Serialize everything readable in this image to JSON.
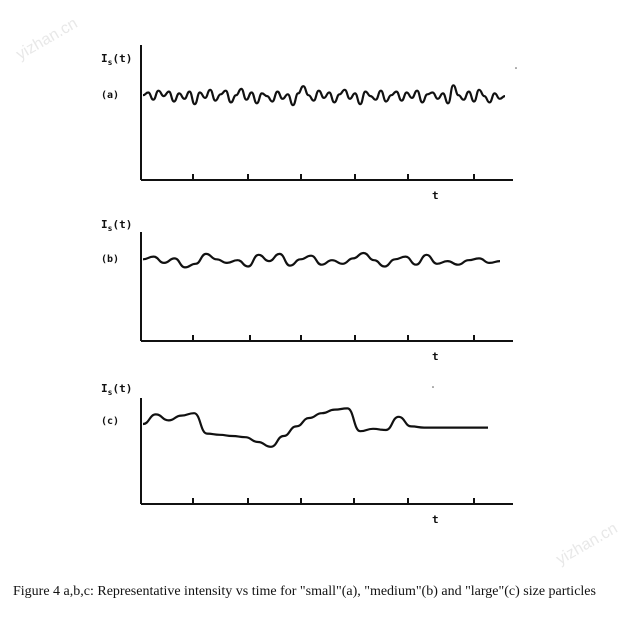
{
  "caption": "Figure 4 a,b,c: Representative intensity vs time for \"small\"(a), \"medium\"(b) and \"large\"(c) size particles",
  "watermarks": [
    "yizhan.cn",
    "yizhan.cn"
  ],
  "chart_data": [
    {
      "type": "line",
      "panel_label": "(a)",
      "ylabel_main": "I",
      "ylabel_sub": "s",
      "ylabel_suffix": "(t)",
      "xlabel": "t",
      "description_note": "",
      "x": [
        0,
        0.1,
        0.2,
        0.3,
        0.4,
        0.5,
        0.6,
        0.7,
        0.8,
        0.9,
        1,
        1.1,
        1.2,
        1.3,
        1.4,
        1.5,
        1.6,
        1.7,
        1.8,
        1.9,
        2,
        2.1,
        2.2,
        2.3,
        2.4,
        2.5,
        2.6,
        2.7,
        2.8,
        2.9,
        3,
        3.1,
        3.2,
        3.3,
        3.4,
        3.5,
        3.6,
        3.7,
        3.8,
        3.9,
        4,
        4.1,
        4.2,
        4.3,
        4.4,
        4.5,
        4.6,
        4.7,
        4.8,
        4.9,
        5,
        5.1,
        5.2,
        5.3,
        5.4,
        5.5,
        5.6,
        5.7,
        5.8,
        5.9,
        6,
        6.1,
        6.2,
        6.3,
        6.4,
        6.5,
        6.6,
        6.7,
        6.8,
        6.9,
        7
      ],
      "y": [
        0.2,
        0.5,
        -0.3,
        0.7,
        0.1,
        0.6,
        -0.5,
        0.4,
        -0.2,
        0.6,
        -0.8,
        0.5,
        -0.1,
        0.8,
        -0.4,
        0.3,
        0.7,
        -0.6,
        0.2,
        0.9,
        -0.3,
        0.5,
        -0.7,
        0.4,
        0.1,
        -0.5,
        0.6,
        -0.2,
        0.3,
        -0.9,
        0.4,
        1.2,
        0.2,
        -0.4,
        0.7,
        -0.1,
        0.5,
        -0.6,
        0.3,
        0.8,
        -0.2,
        0.4,
        -0.8,
        0.6,
        0.1,
        -0.3,
        0.7,
        -0.5,
        0.2,
        0.6,
        -0.4,
        0.5,
        -0.1,
        0.7,
        -0.6,
        0.3,
        0.5,
        -0.2,
        0.4,
        -0.7,
        1.3,
        0.2,
        -0.3,
        0.6,
        -0.5,
        0.8,
        0.1,
        -0.6,
        0.4,
        -0.2,
        0.1
      ],
      "ylim": [
        -3,
        4
      ],
      "xlim": [
        0,
        7.3
      ],
      "xticks": [
        1,
        2,
        3,
        4,
        5,
        6
      ]
    },
    {
      "type": "line",
      "panel_label": "(b)",
      "ylabel_main": "I",
      "ylabel_sub": "s",
      "ylabel_suffix": "(t)",
      "xlabel": "t",
      "x": [
        0,
        0.2,
        0.4,
        0.6,
        0.8,
        1,
        1.2,
        1.4,
        1.6,
        1.8,
        2,
        2.2,
        2.4,
        2.6,
        2.8,
        3,
        3.2,
        3.4,
        3.6,
        3.8,
        4,
        4.2,
        4.4,
        4.6,
        4.8,
        5,
        5.2,
        5.4,
        5.6,
        5.8,
        6,
        6.2,
        6.4,
        6.6,
        6.8
      ],
      "y": [
        0.3,
        0.6,
        -0.1,
        0.4,
        -0.6,
        -0.2,
        0.9,
        0.3,
        -0.1,
        0.2,
        -0.5,
        0.8,
        0.1,
        0.9,
        -0.4,
        0.3,
        0.7,
        -0.3,
        0.2,
        -0.2,
        0.4,
        1.0,
        0.2,
        -0.5,
        0.3,
        0.6,
        -0.3,
        0.8,
        -0.2,
        0.1,
        -0.3,
        0.2,
        0.4,
        -0.1,
        0.1
      ],
      "ylim": [
        -3,
        4
      ],
      "xlim": [
        0,
        7.3
      ],
      "xticks": [
        1,
        2,
        3,
        4,
        5,
        6
      ]
    },
    {
      "type": "line",
      "panel_label": "(c)",
      "ylabel_main": "I",
      "ylabel_sub": "s",
      "ylabel_suffix": "(t)",
      "xlabel": "t",
      "x": [
        0,
        0.25,
        0.5,
        0.75,
        1,
        1.25,
        1.5,
        1.75,
        2,
        2.25,
        2.5,
        2.75,
        3,
        3.25,
        3.5,
        3.75,
        4,
        4.25,
        4.5,
        4.75,
        5,
        5.25,
        5.5,
        5.75,
        6,
        6.25,
        6.5,
        6.75
      ],
      "y": [
        0.0,
        0.8,
        0.3,
        0.7,
        0.9,
        -0.8,
        -0.9,
        -1.0,
        -1.1,
        -1.5,
        -1.9,
        -1.0,
        -0.2,
        0.5,
        0.9,
        1.2,
        1.3,
        -0.6,
        -0.4,
        -0.5,
        0.6,
        -0.2,
        -0.3,
        -0.3,
        -0.3,
        -0.3,
        -0.3,
        -0.3
      ],
      "ylim": [
        -3,
        4
      ],
      "xlim": [
        0,
        7.3
      ],
      "xticks": [
        1,
        2,
        3,
        4,
        5,
        6
      ]
    }
  ]
}
